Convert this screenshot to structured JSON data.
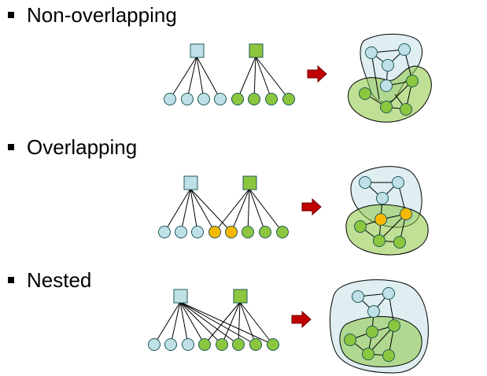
{
  "sections": [
    {
      "heading": "Non-overlapping"
    },
    {
      "heading": "Overlapping"
    },
    {
      "heading": "Nested"
    }
  ],
  "colors": {
    "blue_node": "#bfe0e6",
    "green_node": "#8cc63f",
    "orange_node": "#f7b800",
    "blue_region": "#d8ebee",
    "green_region": "#b5d98a",
    "arrow": "#c00000",
    "stroke": "#1f5a5a"
  },
  "icons": {
    "bullet": "square-bullet-icon",
    "arrow": "right-arrow-icon"
  }
}
